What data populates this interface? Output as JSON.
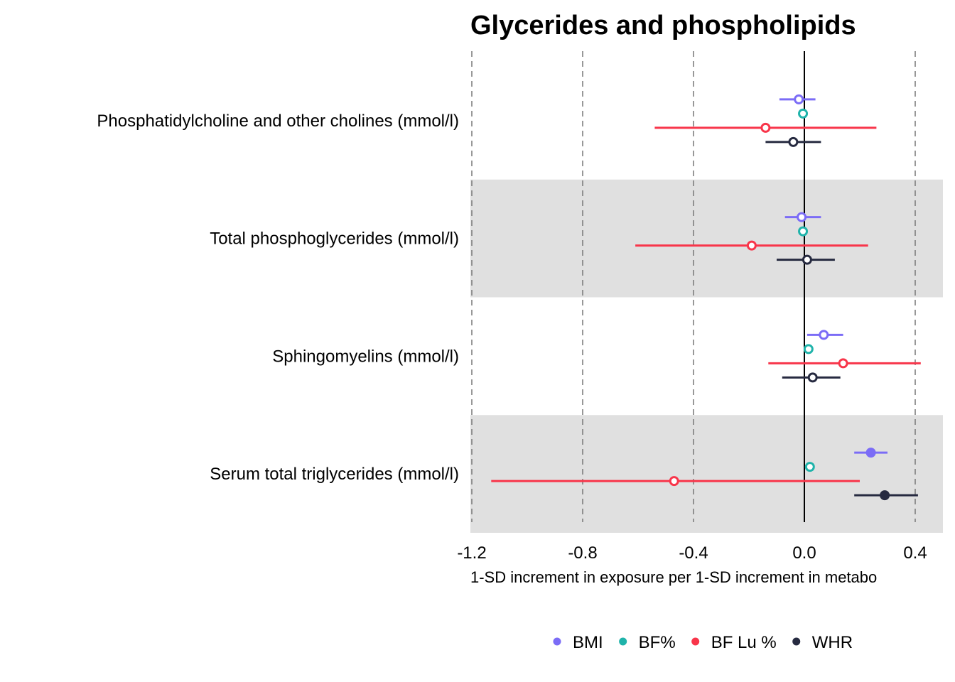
{
  "chart_data": {
    "type": "scatter",
    "subtype": "forest-plot",
    "title": "Glycerides and phospholipids",
    "xlabel": "1-SD increment in exposure per 1-SD increment in metabo",
    "ylabel": "",
    "xlim": [
      -1.2,
      0.5
    ],
    "x_ticks": [
      "-1.2",
      "-0.8",
      "-0.4",
      "0.0",
      "0.4"
    ],
    "x_tick_values": [
      -1.2,
      -0.8,
      -0.4,
      0.0,
      0.4
    ],
    "grid": "vertical dashed",
    "reference_line": 0.0,
    "legend_position": "bottom",
    "categories": [
      "Phosphatidylcholine and other cholines (mmol/l)",
      "Total phosphoglycerides (mmol/l)",
      "Sphingomyelins (mmol/l)",
      "Serum total triglycerides (mmol/l)"
    ],
    "series": [
      {
        "name": "BMI",
        "color": "#7b6cf6",
        "points": [
          {
            "est": -0.02,
            "lo": -0.09,
            "hi": 0.04,
            "filled": false
          },
          {
            "est": -0.01,
            "lo": -0.07,
            "hi": 0.06,
            "filled": false
          },
          {
            "est": 0.07,
            "lo": 0.01,
            "hi": 0.14,
            "filled": false
          },
          {
            "est": 0.24,
            "lo": 0.18,
            "hi": 0.3,
            "filled": true
          }
        ]
      },
      {
        "name": "BF%",
        "color": "#1fb3aa",
        "points": [
          {
            "est": -0.005,
            "lo": -0.02,
            "hi": 0.01,
            "filled": false
          },
          {
            "est": -0.005,
            "lo": -0.02,
            "hi": 0.01,
            "filled": false
          },
          {
            "est": 0.015,
            "lo": 0.0,
            "hi": 0.03,
            "filled": false
          },
          {
            "est": 0.02,
            "lo": 0.01,
            "hi": 0.03,
            "filled": false
          }
        ]
      },
      {
        "name": "BF Lu %",
        "color": "#f8354a",
        "points": [
          {
            "est": -0.14,
            "lo": -0.54,
            "hi": 0.26,
            "filled": false
          },
          {
            "est": -0.19,
            "lo": -0.61,
            "hi": 0.23,
            "filled": false
          },
          {
            "est": 0.14,
            "lo": -0.13,
            "hi": 0.42,
            "filled": false
          },
          {
            "est": -0.47,
            "lo": -1.13,
            "hi": 0.2,
            "filled": false
          }
        ]
      },
      {
        "name": "WHR",
        "color": "#262a40",
        "points": [
          {
            "est": -0.04,
            "lo": -0.14,
            "hi": 0.06,
            "filled": false
          },
          {
            "est": 0.01,
            "lo": -0.1,
            "hi": 0.11,
            "filled": false
          },
          {
            "est": 0.03,
            "lo": -0.08,
            "hi": 0.13,
            "filled": false
          },
          {
            "est": 0.29,
            "lo": 0.18,
            "hi": 0.41,
            "filled": true
          }
        ]
      }
    ]
  }
}
